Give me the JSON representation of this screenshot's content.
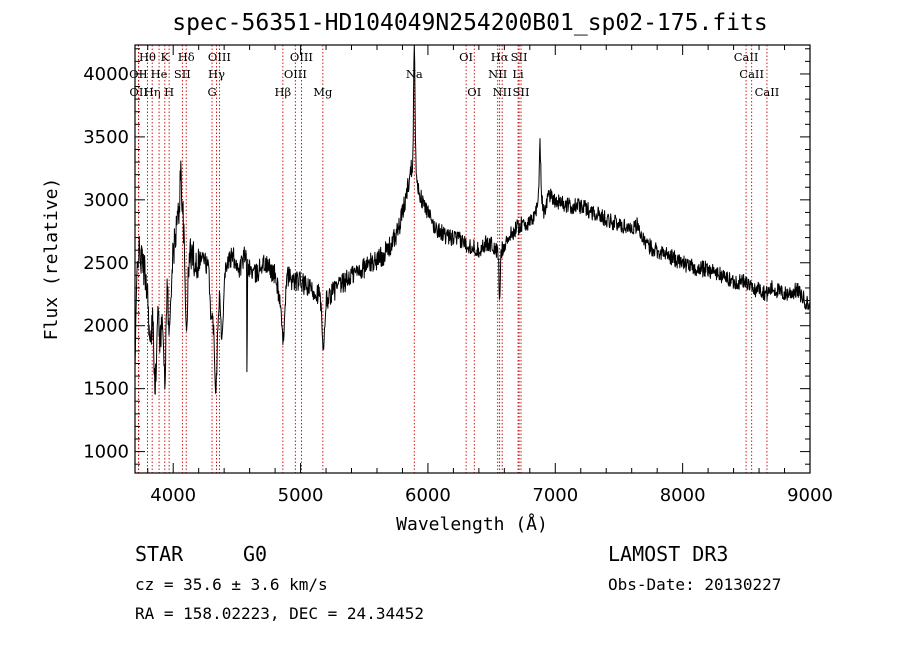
{
  "title": "spec-56351-HD104049N254200B01_sp02-175.fits",
  "chart_data": {
    "type": "line",
    "title": "spec-56351-HD104049N254200B01_sp02-175.fits",
    "xlabel": "Wavelength (Å)",
    "ylabel": "Flux (relative)",
    "xlim": [
      3700,
      9000
    ],
    "ylim": [
      830,
      4230
    ],
    "x_ticks": [
      4000,
      5000,
      6000,
      7000,
      8000,
      9000
    ],
    "y_ticks": [
      1000,
      1500,
      2000,
      2500,
      3000,
      3500,
      4000
    ],
    "line_color": "#000000",
    "marker_color": "#cc0000",
    "spectrum_anchors": [
      [
        3700,
        1650
      ],
      [
        3720,
        2600
      ],
      [
        3760,
        2500
      ],
      [
        3800,
        2300
      ],
      [
        3830,
        2250
      ],
      [
        3860,
        2150
      ],
      [
        3890,
        2350
      ],
      [
        3920,
        2400
      ],
      [
        3960,
        2600
      ],
      [
        3990,
        2450
      ],
      [
        4020,
        2750
      ],
      [
        4060,
        3000
      ],
      [
        4080,
        2900
      ],
      [
        4102,
        2400
      ],
      [
        4130,
        2600
      ],
      [
        4180,
        2500
      ],
      [
        4230,
        2550
      ],
      [
        4280,
        2450
      ],
      [
        4320,
        2250
      ],
      [
        4350,
        2200
      ],
      [
        4380,
        2300
      ],
      [
        4420,
        2500
      ],
      [
        4470,
        2550
      ],
      [
        4520,
        2450
      ],
      [
        4560,
        2550
      ],
      [
        4600,
        2450
      ],
      [
        4650,
        2400
      ],
      [
        4700,
        2500
      ],
      [
        4760,
        2450
      ],
      [
        4800,
        2400
      ],
      [
        4861,
        2100
      ],
      [
        4900,
        2400
      ],
      [
        4950,
        2350
      ],
      [
        5000,
        2350
      ],
      [
        5050,
        2300
      ],
      [
        5100,
        2280
      ],
      [
        5150,
        2250
      ],
      [
        5175,
        2150
      ],
      [
        5200,
        2200
      ],
      [
        5260,
        2280
      ],
      [
        5320,
        2320
      ],
      [
        5400,
        2400
      ],
      [
        5480,
        2450
      ],
      [
        5560,
        2500
      ],
      [
        5650,
        2560
      ],
      [
        5720,
        2650
      ],
      [
        5780,
        2800
      ],
      [
        5820,
        2980
      ],
      [
        5850,
        3150
      ],
      [
        5880,
        3300
      ],
      [
        5893,
        3800
      ],
      [
        5910,
        3150
      ],
      [
        5950,
        3000
      ],
      [
        6000,
        2900
      ],
      [
        6050,
        2780
      ],
      [
        6100,
        2750
      ],
      [
        6150,
        2700
      ],
      [
        6200,
        2700
      ],
      [
        6250,
        2680
      ],
      [
        6300,
        2650
      ],
      [
        6364,
        2620
      ],
      [
        6400,
        2600
      ],
      [
        6450,
        2650
      ],
      [
        6500,
        2650
      ],
      [
        6563,
        2550
      ],
      [
        6600,
        2650
      ],
      [
        6650,
        2720
      ],
      [
        6700,
        2780
      ],
      [
        6760,
        2820
      ],
      [
        6800,
        2800
      ],
      [
        6850,
        2920
      ],
      [
        6880,
        3100
      ],
      [
        6910,
        2900
      ],
      [
        6950,
        3050
      ],
      [
        7000,
        3000
      ],
      [
        7100,
        2950
      ],
      [
        7200,
        2950
      ],
      [
        7300,
        2900
      ],
      [
        7400,
        2850
      ],
      [
        7500,
        2800
      ],
      [
        7600,
        2780
      ],
      [
        7650,
        2800
      ],
      [
        7700,
        2650
      ],
      [
        7800,
        2600
      ],
      [
        7900,
        2550
      ],
      [
        8000,
        2500
      ],
      [
        8100,
        2450
      ],
      [
        8200,
        2450
      ],
      [
        8300,
        2400
      ],
      [
        8400,
        2350
      ],
      [
        8500,
        2350
      ],
      [
        8550,
        2280
      ],
      [
        8600,
        2300
      ],
      [
        8662,
        2250
      ],
      [
        8700,
        2300
      ],
      [
        8800,
        2250
      ],
      [
        8900,
        2280
      ],
      [
        9000,
        2150
      ]
    ],
    "absorption_features": [
      [
        3820,
        -450,
        10
      ],
      [
        3860,
        -600,
        12
      ],
      [
        3900,
        -500,
        10
      ],
      [
        3934,
        -950,
        9
      ],
      [
        3968,
        -650,
        9
      ],
      [
        4102,
        -400,
        12
      ],
      [
        4300,
        -300,
        10
      ],
      [
        4330,
        -500,
        10
      ],
      [
        4340,
        -300,
        8
      ],
      [
        4383,
        -450,
        8
      ],
      [
        4580,
        -900,
        2
      ],
      [
        4861,
        -250,
        10
      ],
      [
        5175,
        -250,
        10
      ],
      [
        5183,
        -200,
        6
      ],
      [
        6563,
        -400,
        4
      ]
    ],
    "emission_spikes": [
      [
        5893,
        650,
        4
      ],
      [
        6880,
        350,
        5
      ],
      [
        4060,
        250,
        6
      ]
    ],
    "noise_level": 65,
    "markers": [
      {
        "name": "Hθ",
        "wavelength": 3798,
        "row": 0
      },
      {
        "name": "OII",
        "wavelength": 3727,
        "row": 1
      },
      {
        "name": "OII",
        "wavelength": 3729,
        "row": 2
      },
      {
        "name": "Hη",
        "wavelength": 3835,
        "row": 2
      },
      {
        "name": "He",
        "wavelength": 3889,
        "row": 1
      },
      {
        "name": "K",
        "wavelength": 3934,
        "row": 0
      },
      {
        "name": "SII",
        "wavelength": 4072,
        "row": 1
      },
      {
        "name": "H",
        "wavelength": 3968,
        "row": 2
      },
      {
        "name": "Hδ",
        "wavelength": 4102,
        "row": 0
      },
      {
        "name": "OIII",
        "wavelength": 4363,
        "row": 0
      },
      {
        "name": "Hγ",
        "wavelength": 4340,
        "row": 1
      },
      {
        "name": "G",
        "wavelength": 4305,
        "row": 2
      },
      {
        "name": "OIII",
        "wavelength": 5007,
        "row": 0
      },
      {
        "name": "OIII",
        "wavelength": 4959,
        "row": 1
      },
      {
        "name": "Hβ",
        "wavelength": 4861,
        "row": 2
      },
      {
        "name": "Mg",
        "wavelength": 5175,
        "row": 2
      },
      {
        "name": "Na",
        "wavelength": 5893,
        "row": 1
      },
      {
        "name": "OI",
        "wavelength": 6300,
        "row": 0
      },
      {
        "name": "OI",
        "wavelength": 6364,
        "row": 2
      },
      {
        "name": "Hα",
        "wavelength": 6563,
        "row": 0
      },
      {
        "name": "SII",
        "wavelength": 6716,
        "row": 0
      },
      {
        "name": "NII",
        "wavelength": 6548,
        "row": 1
      },
      {
        "name": "Li",
        "wavelength": 6708,
        "row": 1
      },
      {
        "name": "NII",
        "wavelength": 6583,
        "row": 2
      },
      {
        "name": "SII",
        "wavelength": 6731,
        "row": 2
      },
      {
        "name": "CaII",
        "wavelength": 8498,
        "row": 0
      },
      {
        "name": "CaII",
        "wavelength": 8542,
        "row": 1
      },
      {
        "name": "CaII",
        "wavelength": 8662,
        "row": 2
      }
    ]
  },
  "footer": {
    "object_class": "STAR",
    "subclass": "G0",
    "redshift": "cz = 35.6 ± 3.6 km/s",
    "coords": "RA = 158.02223, DEC =  24.34452",
    "survey": "LAMOST DR3",
    "obs_date": "Obs-Date: 20130227"
  }
}
